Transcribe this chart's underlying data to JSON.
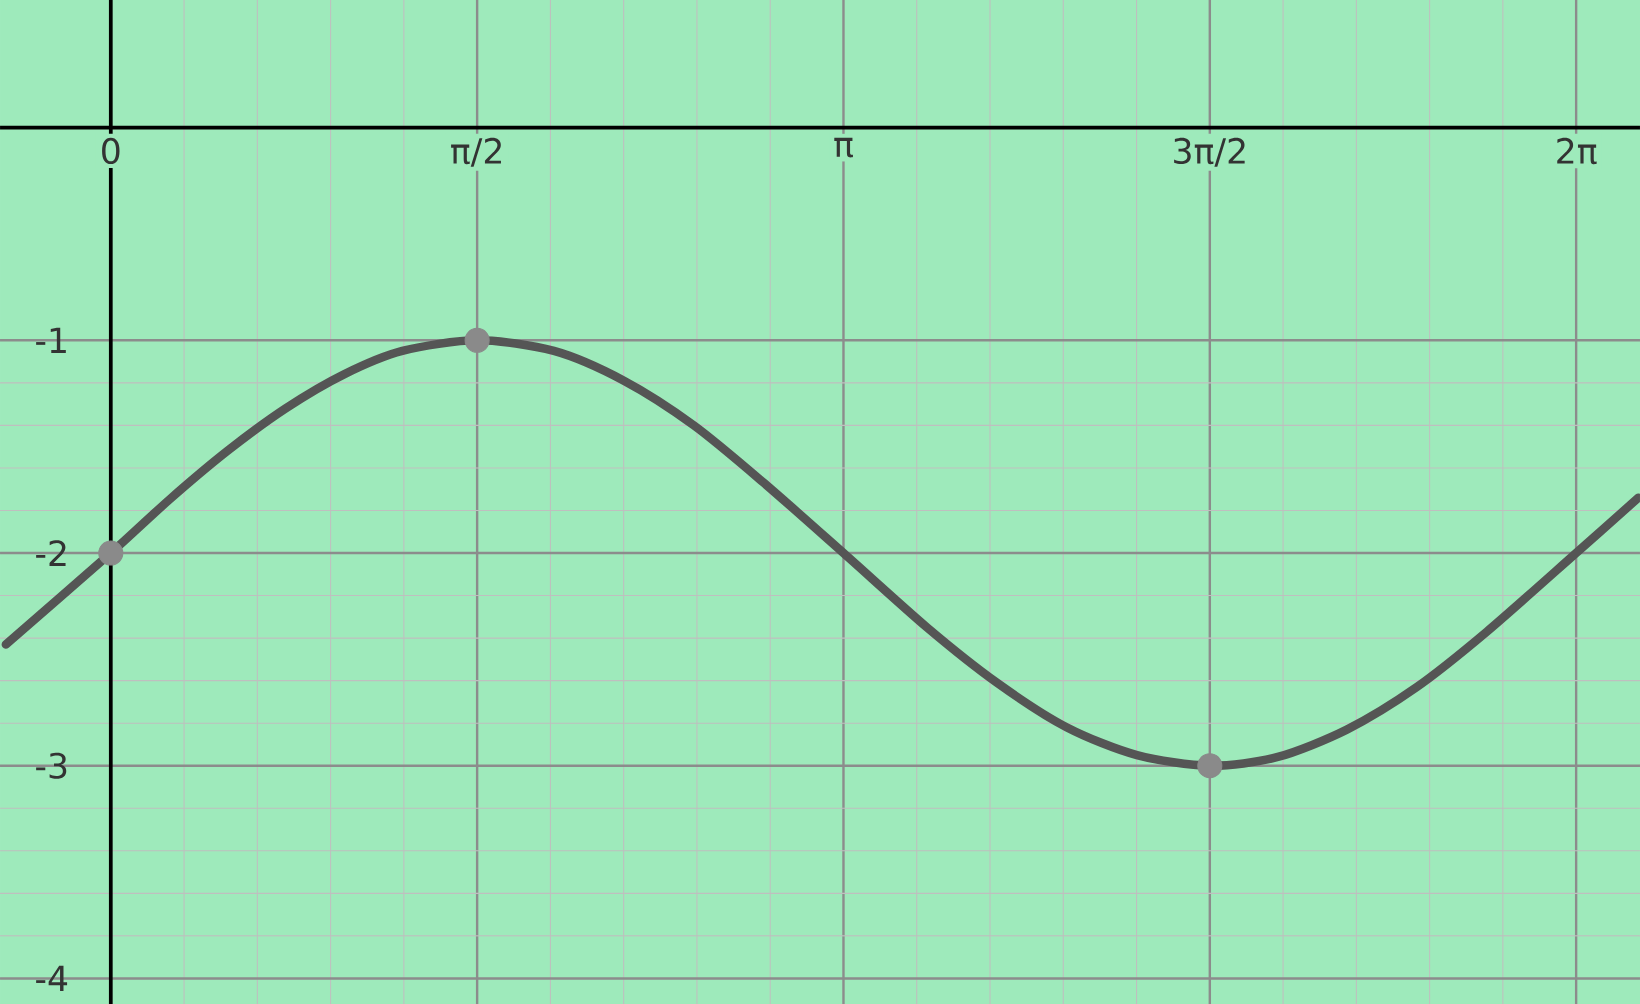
{
  "chart_data": {
    "type": "line",
    "xlim": [
      -0.475,
      6.557
    ],
    "ylim": [
      -4.12,
      0.6
    ],
    "xticks": [
      {
        "value": 0,
        "label": "0"
      },
      {
        "value": 1.5708,
        "label": "π/2"
      },
      {
        "value": 3.1416,
        "label": "π"
      },
      {
        "value": 4.7124,
        "label": "3π/2"
      },
      {
        "value": 6.2832,
        "label": "2π"
      }
    ],
    "yticks": [
      -1,
      -2,
      -3,
      -4
    ],
    "grid": true,
    "series": [
      {
        "type": "line",
        "color": "#555555",
        "x": [
          -0.45,
          0,
          0.25,
          0.5,
          0.75,
          1.0,
          1.25,
          1.5708,
          1.9,
          2.2,
          2.5,
          2.8,
          3.1416,
          3.5,
          3.8,
          4.1,
          4.4,
          4.7124,
          5.0,
          5.3,
          5.6,
          5.9,
          6.2832,
          6.55
        ],
        "values": [
          -2.43,
          -2,
          -1.75,
          -1.52,
          -1.32,
          -1.16,
          -1.05,
          -1,
          -1.05,
          -1.19,
          -1.4,
          -1.67,
          -2,
          -2.35,
          -2.61,
          -2.82,
          -2.95,
          -3,
          -2.96,
          -2.83,
          -2.63,
          -2.37,
          -2,
          -1.74
        ]
      },
      {
        "type": "scatter",
        "color": "#8a8a8a",
        "marker": "circle",
        "x": [
          0,
          1.5708,
          4.7124
        ],
        "values": [
          -2,
          -1,
          -3
        ]
      }
    ]
  }
}
